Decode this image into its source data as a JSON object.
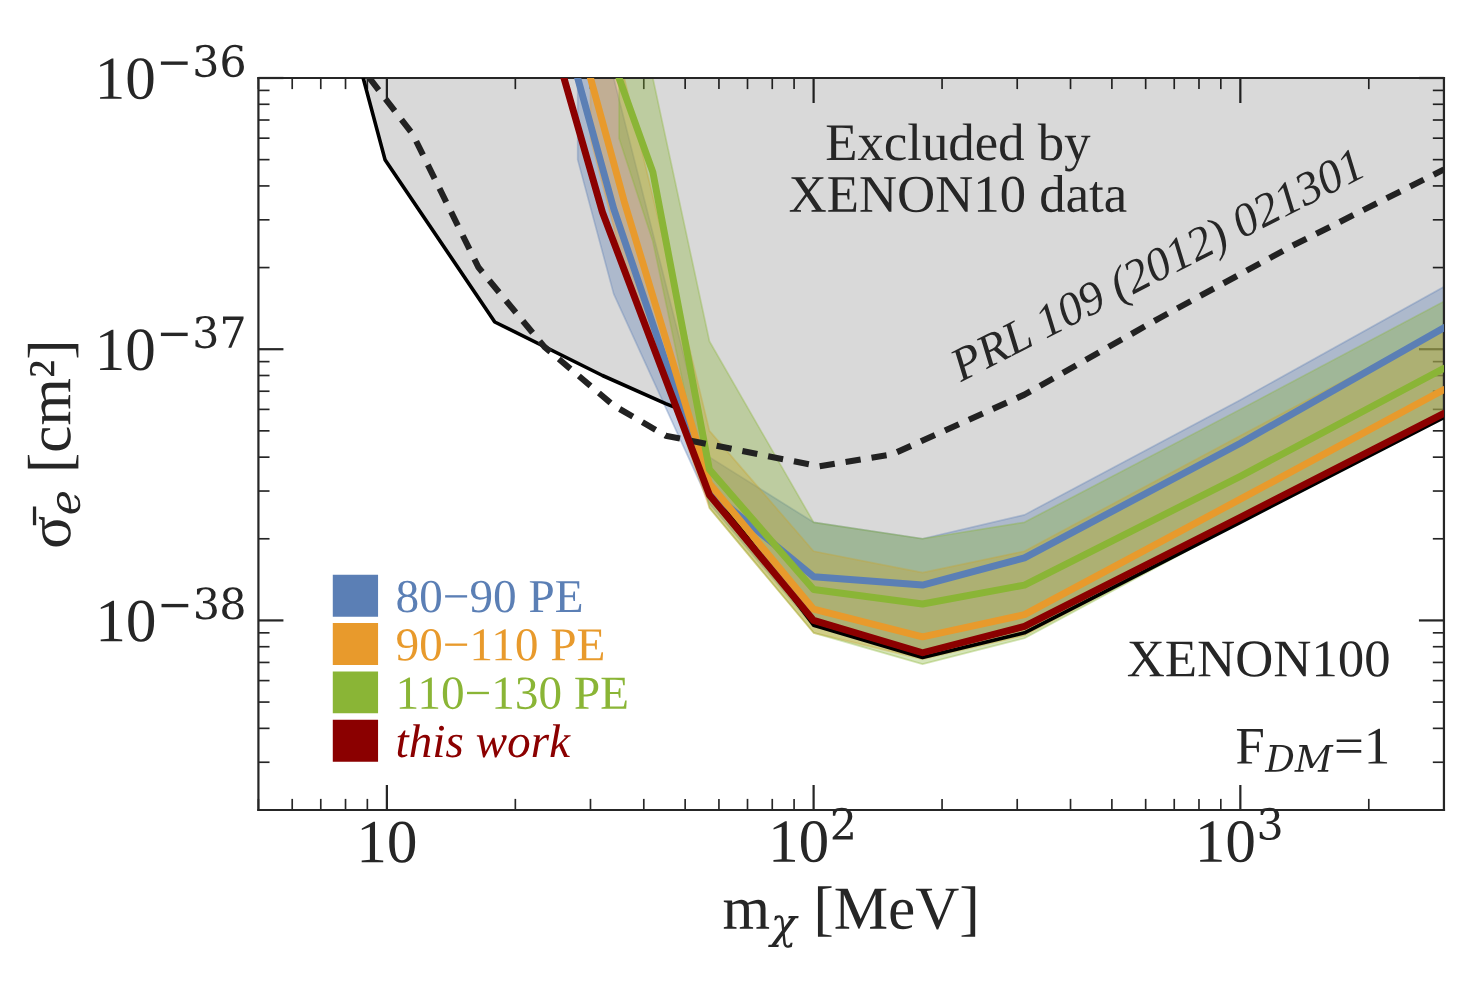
{
  "chart_data": {
    "type": "line",
    "xlabel": "m$_{χ}$ [MeV]",
    "ylabel": "σ̄$_{e}$ [cm²]",
    "log": "xy",
    "xlim": [
      5,
      3000
    ],
    "ylim": [
      2e-39,
      1e-36
    ],
    "xticks": [
      {
        "value": 10,
        "label": "10"
      },
      {
        "value": 100,
        "label": "10$^{2}$"
      },
      {
        "value": 1000,
        "label": "10$^{3}$"
      }
    ],
    "yticks": [
      {
        "value": 1e-38,
        "label": "10$^{−38}$"
      },
      {
        "value": 1e-37,
        "label": "10$^{−37}$"
      },
      {
        "value": 1e-36,
        "label": "10$^{−36}$"
      }
    ],
    "grid": false,
    "legend": "bottom left",
    "annotations": [
      "Excluded by\nXENON10 data",
      "XENON100",
      "F$_{DM}$=1",
      "PRL 109 (2012) 021301"
    ],
    "series": [
      {
        "color": "#000000",
        "line_style": "solid",
        "x": [
          8.8,
          9.9,
          17.9,
          32,
          45,
          50,
          57,
          100,
          180,
          312,
          1000,
          3000
        ],
        "values": [
          1e-36,
          5e-37,
          1.26e-37,
          8e-38,
          6.3e-38,
          5.9e-38,
          3.1e-38,
          9.6e-39,
          7.3e-39,
          9e-39,
          2.3e-38,
          5.6e-38
        ],
        "lower": [
          1e-36,
          5e-37,
          1.26e-37,
          8e-38,
          6.3e-38,
          5.9e-38,
          3.1e-38,
          9.6e-39,
          7.3e-39,
          9e-39,
          2.3e-38,
          5.6e-38
        ],
        "upper": [
          1e-36,
          1e-36,
          1e-36,
          1e-36,
          1e-36,
          1e-36,
          1e-36,
          1e-36,
          1e-36,
          1e-36,
          1e-36,
          1e-36
        ]
      },
      {
        "color": "#5b7fb5",
        "name": "80−90 PE",
        "line_style": "solid",
        "x": [
          28,
          34,
          57,
          100,
          180,
          312,
          1000,
          3000
        ],
        "values": [
          1e-36,
          3.3e-37,
          3e-38,
          1.45e-38,
          1.35e-38,
          1.7e-38,
          4.5e-38,
          1.2e-37
        ],
        "lower": [
          5e-37,
          1.6e-37,
          2.7e-38,
          9.5e-39,
          7.8e-39,
          9.3e-39,
          2.3e-38,
          5.6e-38
        ],
        "upper": [
          1e-36,
          1e-36,
          4e-38,
          2.3e-38,
          2e-38,
          2.45e-38,
          6.5e-38,
          1.7e-37
        ]
      },
      {
        "color": "#e89a2c",
        "name": "90−110 PE",
        "line_style": "solid",
        "x": [
          30,
          36,
          57,
          100,
          180,
          312,
          1000,
          3000
        ],
        "values": [
          1e-36,
          3.5e-37,
          3.2e-38,
          1.1e-38,
          8.7e-39,
          1.05e-38,
          2.8e-38,
          7.1e-38
        ],
        "lower": [
          6e-37,
          2e-37,
          2.6e-38,
          9e-39,
          7.2e-39,
          8.8e-39,
          2.3e-38,
          5.7e-38
        ],
        "upper": [
          1e-36,
          1e-36,
          5e-38,
          1.8e-38,
          1.5e-38,
          1.8e-38,
          4.8e-38,
          1.2e-37
        ]
      },
      {
        "color": "#8ab536",
        "name": "110−130 PE",
        "line_style": "solid",
        "x": [
          35,
          42,
          57,
          100,
          180,
          312,
          1000,
          3000
        ],
        "values": [
          1e-36,
          4.5e-37,
          3.6e-38,
          1.3e-38,
          1.15e-38,
          1.35e-38,
          3.4e-38,
          8.5e-38
        ],
        "lower": [
          6e-37,
          2.5e-37,
          2.6e-38,
          9e-39,
          6.9e-39,
          8.6e-39,
          2.3e-38,
          5.6e-38
        ],
        "upper": [
          1e-36,
          1e-36,
          1.07e-37,
          2.3e-38,
          2e-38,
          2.3e-38,
          6e-38,
          1.5e-37
        ]
      },
      {
        "color": "#222222",
        "line_style": "dashed",
        "x": [
          9.1,
          11.5,
          16.4,
          23.4,
          34,
          45,
          103,
          153,
          312,
          645,
          1320,
          3000
        ],
        "values": [
          1e-36,
          6.2e-37,
          2e-37,
          1.02e-37,
          6.2e-38,
          4.8e-38,
          3.7e-38,
          4.1e-38,
          6.8e-38,
          1.3e-37,
          2.4e-37,
          4.6e-37
        ]
      },
      {
        "color": "#8b0000",
        "name": "this work",
        "line_style": "solid",
        "x": [
          26,
          32,
          57,
          100,
          180,
          312,
          1000,
          3000
        ],
        "values": [
          1e-36,
          3.2e-37,
          2.9e-38,
          1e-38,
          7.6e-39,
          9.5e-39,
          2.4e-38,
          5.8e-38
        ]
      }
    ]
  }
}
